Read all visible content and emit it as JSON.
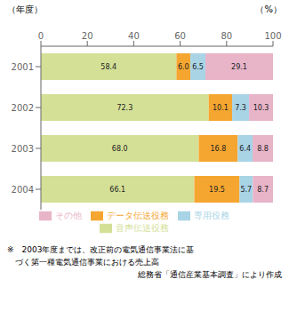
{
  "chart_data": {
    "type": "bar",
    "orientation": "horizontal",
    "stacked": true,
    "data_labels": true,
    "grid": false,
    "legend": "bottom",
    "xlabel": "（%）",
    "ylabel": "（年度）",
    "categories": [
      "2001",
      "2002",
      "2003",
      "2004"
    ],
    "series": [
      {
        "name": "音声伝送役務",
        "color": "#d4e096",
        "values": [
          58.4,
          72.3,
          68.0,
          66.1
        ],
        "value_labels": [
          "58.4",
          "72.3",
          "68.0",
          "66.1"
        ]
      },
      {
        "name": "データ伝送役務",
        "color": "#f5a630",
        "values": [
          6.0,
          10.1,
          16.8,
          19.5
        ],
        "value_labels": [
          "6.0",
          "10.1",
          "16.8",
          "19.5"
        ]
      },
      {
        "name": "専用役務",
        "color": "#a8d4e6",
        "values": [
          6.5,
          7.3,
          6.4,
          5.7
        ],
        "value_labels": [
          "6.5",
          "7.3",
          "6.4",
          "5.7"
        ]
      },
      {
        "name": "その他",
        "color": "#e8b4c8",
        "values": [
          29.1,
          10.3,
          8.8,
          8.7
        ],
        "value_labels": [
          "29.1",
          "10.3",
          "8.8",
          "8.7"
        ]
      }
    ],
    "xlim": [
      0,
      100
    ],
    "xticks": [
      0,
      20,
      40,
      60,
      80,
      100
    ],
    "annotations": [
      "※　2003年度までは、改正前の電気通信事業法に基",
      "　づく第一種電気通信事業における売上高",
      "総務省「通信産業基本調査」により作成"
    ]
  }
}
